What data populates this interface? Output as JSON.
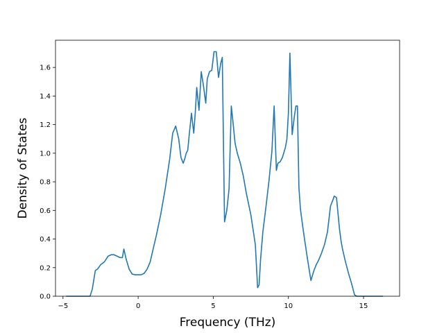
{
  "chart_data": {
    "type": "line",
    "title": "",
    "xlabel": "Frequency (THz)",
    "ylabel": "Density of States",
    "xlim": [
      -5.5,
      17.4
    ],
    "ylim": [
      0.0,
      1.79
    ],
    "xticks": [
      -5,
      0,
      5,
      10,
      15
    ],
    "xtick_labels": [
      "−5",
      "0",
      "5",
      "10",
      "15"
    ],
    "yticks": [
      0.0,
      0.2,
      0.4,
      0.6,
      0.8,
      1.0,
      1.2,
      1.4,
      1.6
    ],
    "ytick_labels": [
      "0.0",
      "0.2",
      "0.4",
      "0.6",
      "0.8",
      "1.0",
      "1.2",
      "1.4",
      "1.6"
    ],
    "grid": false,
    "line_color": "#1f77b4",
    "series": [
      {
        "x": [
          -4.8,
          -4.0,
          -3.2,
          -3.05,
          -2.85,
          -2.7,
          -2.5,
          -2.25,
          -2.0,
          -1.8,
          -1.6,
          -1.4,
          -1.2,
          -1.05,
          -0.95,
          -0.8,
          -0.6,
          -0.4,
          -0.2,
          0.0,
          0.2,
          0.4,
          0.6,
          0.8,
          1.0,
          1.2,
          1.5,
          1.8,
          2.1,
          2.3,
          2.5,
          2.7,
          2.85,
          3.0,
          3.1,
          3.2,
          3.3,
          3.4,
          3.55,
          3.7,
          3.8,
          3.9,
          4.05,
          4.2,
          4.35,
          4.5,
          4.6,
          4.75,
          4.9,
          5.05,
          5.2,
          5.35,
          5.5,
          5.6,
          5.75,
          5.9,
          6.05,
          6.2,
          6.3,
          6.45,
          6.6,
          6.8,
          7.0,
          7.2,
          7.5,
          7.8,
          7.95,
          8.05,
          8.15,
          8.3,
          8.5,
          8.7,
          8.9,
          9.05,
          9.2,
          9.3,
          9.45,
          9.6,
          9.8,
          9.9,
          10.0,
          10.1,
          10.25,
          10.4,
          10.5,
          10.6,
          10.7,
          10.8,
          10.95,
          11.1,
          11.3,
          11.5,
          11.7,
          11.85,
          12.0,
          12.2,
          12.4,
          12.6,
          12.8,
          12.95,
          13.05,
          13.2,
          13.4,
          13.5,
          13.6,
          13.8,
          14.0,
          14.2,
          14.4,
          14.55,
          14.65,
          15.0,
          15.5,
          16.0,
          16.3
        ],
        "y": [
          0.0,
          0.0,
          0.0,
          0.05,
          0.18,
          0.19,
          0.22,
          0.24,
          0.28,
          0.29,
          0.29,
          0.28,
          0.27,
          0.27,
          0.33,
          0.26,
          0.19,
          0.155,
          0.15,
          0.15,
          0.15,
          0.16,
          0.19,
          0.24,
          0.33,
          0.42,
          0.57,
          0.75,
          0.96,
          1.14,
          1.19,
          1.1,
          0.97,
          0.93,
          0.96,
          1.0,
          1.02,
          1.13,
          1.28,
          1.14,
          1.28,
          1.46,
          1.3,
          1.57,
          1.47,
          1.35,
          1.52,
          1.57,
          1.58,
          1.71,
          1.71,
          1.53,
          1.63,
          1.67,
          0.52,
          0.6,
          0.75,
          1.33,
          1.23,
          1.07,
          1.0,
          0.93,
          0.84,
          0.72,
          0.57,
          0.36,
          0.06,
          0.08,
          0.26,
          0.45,
          0.62,
          0.8,
          1.01,
          1.33,
          0.88,
          0.93,
          0.94,
          0.97,
          1.04,
          1.1,
          1.28,
          1.7,
          1.13,
          1.26,
          1.33,
          1.33,
          0.76,
          0.61,
          0.49,
          0.38,
          0.24,
          0.11,
          0.18,
          0.22,
          0.25,
          0.3,
          0.36,
          0.45,
          0.63,
          0.67,
          0.7,
          0.69,
          0.47,
          0.39,
          0.33,
          0.24,
          0.16,
          0.09,
          0.01,
          0.0,
          0.0,
          0.0,
          0.0,
          0.0,
          0.0
        ]
      }
    ]
  }
}
